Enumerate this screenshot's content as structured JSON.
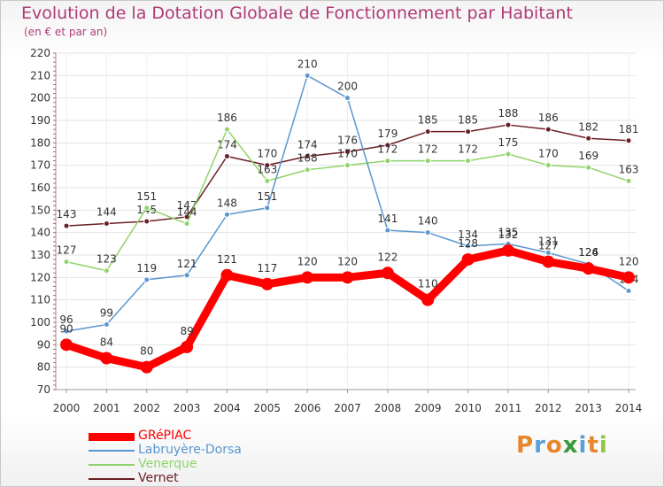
{
  "header": {
    "title": "Evolution de la Dotation Globale de Fonctionnement par Habitant",
    "subtitle": "(en € et par an)"
  },
  "logo": {
    "text": "Proxiti",
    "letters": [
      "P",
      "r",
      "o",
      "x",
      "i",
      "t",
      "i"
    ],
    "colors": [
      "#e8862a",
      "#5aa0d8",
      "#e8862a",
      "#3a9a3a",
      "#5aa0d8",
      "#e8862a",
      "#8fc53f"
    ]
  },
  "chart_data": {
    "type": "line",
    "title": "Evolution de la Dotation Globale de Fonctionnement par Habitant",
    "subtitle": "(en € et par an)",
    "xlabel": "",
    "ylabel": "",
    "ylim": [
      70,
      220
    ],
    "y_ticks": [
      70,
      80,
      90,
      100,
      110,
      120,
      130,
      140,
      150,
      160,
      170,
      180,
      190,
      200,
      210,
      220
    ],
    "grid": true,
    "legend_position": "bottom-left",
    "x": [
      "2000",
      "2001",
      "2002",
      "2003",
      "2004",
      "2005",
      "2006",
      "2007",
      "2008",
      "2009",
      "2010",
      "2011",
      "2012",
      "2013",
      "2014"
    ],
    "series": [
      {
        "name": "Vernet",
        "color": "#6b1e24",
        "values": [
          143,
          144,
          145,
          147,
          174,
          170,
          174,
          176,
          179,
          185,
          185,
          188,
          186,
          182,
          181
        ]
      },
      {
        "name": "Venerque",
        "color": "#8fd46a",
        "values": [
          127,
          123,
          151,
          144,
          186,
          163,
          168,
          170,
          172,
          172,
          172,
          175,
          170,
          169,
          163
        ]
      },
      {
        "name": "Labruyère-Dorsa",
        "color": "#5a96cf",
        "values": [
          96,
          99,
          119,
          121,
          148,
          151,
          210,
          200,
          141,
          140,
          134,
          135,
          131,
          126,
          114
        ]
      },
      {
        "name": "GRéPIAC",
        "color": "#ff0000",
        "values": [
          90,
          84,
          80,
          89,
          121,
          117,
          120,
          120,
          122,
          110,
          128,
          132,
          127,
          124,
          120
        ]
      }
    ],
    "legend_order": [
      "GRéPIAC",
      "Labruyère-Dorsa",
      "Venerque",
      "Vernet"
    ]
  }
}
